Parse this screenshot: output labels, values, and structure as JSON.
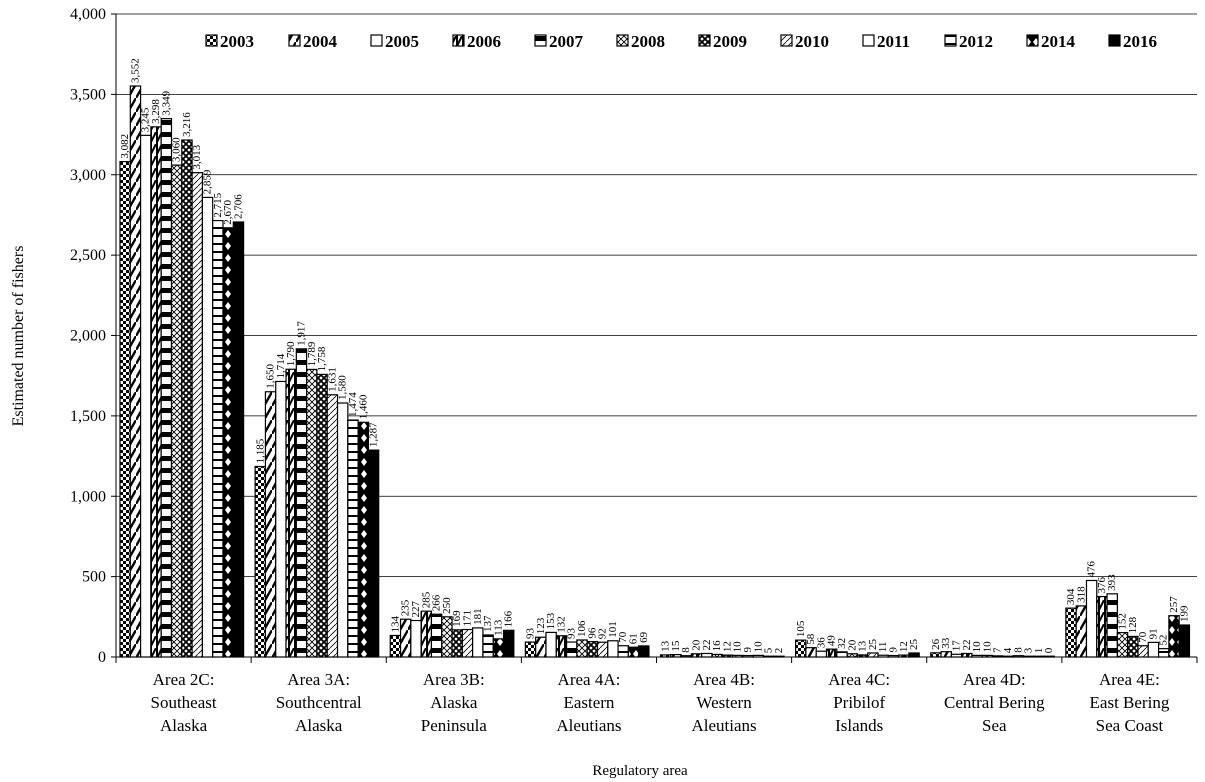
{
  "chart_data": {
    "type": "bar",
    "title": "",
    "xlabel": "Regulatory area",
    "ylabel": "Estimated number of fishers",
    "ylim": [
      0,
      4000
    ],
    "yticks": [
      "0",
      "500",
      "1,000",
      "1,500",
      "2,000",
      "2,500",
      "3,000",
      "3,500",
      "4,000"
    ],
    "grid": true,
    "legend_position": "top-right",
    "categories": [
      [
        "Area 2C:",
        "Southeast",
        "Alaska"
      ],
      [
        "Area 3A:",
        "Southcentral",
        "Alaska"
      ],
      [
        "Area 3B:",
        "Alaska",
        "Peninsula"
      ],
      [
        "Area 4A:",
        "Eastern",
        "Aleutians"
      ],
      [
        "Area 4B:",
        "Western",
        "Aleutians"
      ],
      [
        "Area 4C:",
        "Pribilof",
        "Islands"
      ],
      [
        "Area 4D:",
        "Central Bering",
        "Sea"
      ],
      [
        "Area 4E:",
        "East Bering",
        "Sea Coast"
      ]
    ],
    "series": [
      {
        "name": "2003",
        "values": [
          3082,
          1185,
          134,
          93,
          13,
          105,
          26,
          304
        ],
        "labels": [
          "3,082",
          "1,185",
          "134",
          "93",
          "13",
          "105",
          "26",
          "304"
        ]
      },
      {
        "name": "2004",
        "values": [
          3552,
          1650,
          235,
          123,
          15,
          58,
          33,
          318
        ],
        "labels": [
          "3,552",
          "1,650",
          "235",
          "123",
          "15",
          "58",
          "33",
          "318"
        ]
      },
      {
        "name": "2005",
        "values": [
          3245,
          1714,
          227,
          153,
          8,
          36,
          17,
          476
        ],
        "labels": [
          "3,245",
          "1,714",
          "227",
          "153",
          "8",
          "36",
          "17",
          "476"
        ]
      },
      {
        "name": "2006",
        "values": [
          3298,
          1790,
          285,
          132,
          20,
          49,
          22,
          376
        ],
        "labels": [
          "3,298",
          "1,790",
          "285",
          "132",
          "20",
          "49",
          "22",
          "376"
        ]
      },
      {
        "name": "2007",
        "values": [
          3349,
          1917,
          266,
          93,
          22,
          32,
          10,
          393
        ],
        "labels": [
          "3,349",
          "1,917",
          "266",
          "93",
          "22",
          "32",
          "10",
          "393"
        ]
      },
      {
        "name": "2008",
        "values": [
          3060,
          1789,
          250,
          106,
          16,
          20,
          10,
          152
        ],
        "labels": [
          "3,060",
          "1,789",
          "250",
          "106",
          "16",
          "20",
          "10",
          "152"
        ]
      },
      {
        "name": "2009",
        "values": [
          3216,
          1758,
          169,
          96,
          12,
          13,
          7,
          128
        ],
        "labels": [
          "3,216",
          "1,758",
          "169",
          "96",
          "12",
          "13",
          "7",
          "128"
        ]
      },
      {
        "name": "2010",
        "values": [
          3013,
          1631,
          171,
          92,
          10,
          25,
          4,
          70
        ],
        "labels": [
          "3,013",
          "1,631",
          "171",
          "92",
          "10",
          "25",
          "4",
          "70"
        ]
      },
      {
        "name": "2011",
        "values": [
          2859,
          1580,
          181,
          101,
          9,
          11,
          8,
          91
        ],
        "labels": [
          "2,859",
          "1,580",
          "181",
          "101",
          "9",
          "11",
          "8",
          "91"
        ]
      },
      {
        "name": "2012",
        "values": [
          2715,
          1474,
          137,
          70,
          10,
          9,
          3,
          52
        ],
        "labels": [
          "2,715",
          "1,474",
          "137",
          "70",
          "10",
          "9",
          "3",
          "52"
        ]
      },
      {
        "name": "2014",
        "values": [
          2670,
          1460,
          113,
          61,
          5,
          12,
          1,
          257
        ],
        "labels": [
          "2,670",
          "1,460",
          "113",
          "61",
          "5",
          "12",
          "1",
          "257"
        ]
      },
      {
        "name": "2016",
        "values": [
          2706,
          1287,
          166,
          69,
          2,
          25,
          0,
          199
        ],
        "labels": [
          "2,706",
          "1,287",
          "166",
          "69",
          "2",
          "25",
          "0",
          "199"
        ]
      }
    ]
  }
}
